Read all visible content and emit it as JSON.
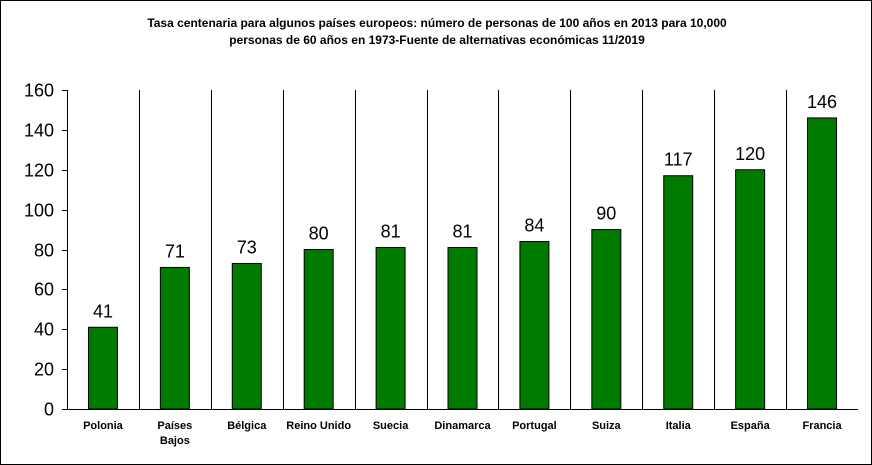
{
  "chart_data": {
    "type": "bar",
    "title_lines": [
      "Tasa centenaria para algunos países europeos: número de personas de 100 años en 2013 para 10,000",
      "personas de 60 años en 1973-Fuente de alternativas económicas 11/2019"
    ],
    "categories": [
      "Polonia",
      "Países Bajos",
      "Bélgica",
      "Reino Unido",
      "Suecia",
      "Dinamarca",
      "Portugal",
      "Suiza",
      "Italia",
      "España",
      "Francia"
    ],
    "category_lines": [
      [
        "Polonia"
      ],
      [
        "Países",
        "Bajos"
      ],
      [
        "Bélgica"
      ],
      [
        "Reino Unido"
      ],
      [
        "Suecia"
      ],
      [
        "Dinamarca"
      ],
      [
        "Portugal"
      ],
      [
        "Suiza"
      ],
      [
        "Italia"
      ],
      [
        "España"
      ],
      [
        "Francia"
      ]
    ],
    "values": [
      41,
      71,
      73,
      80,
      81,
      81,
      84,
      90,
      117,
      120,
      146
    ],
    "data_labels": [
      "41",
      "71",
      "73",
      "80",
      "81",
      "81",
      "84",
      "90",
      "117",
      "120",
      "146"
    ],
    "ylim": [
      0,
      160
    ],
    "yticks": [
      0,
      20,
      40,
      60,
      80,
      100,
      120,
      140,
      160
    ],
    "ytick_labels": [
      "0",
      "20",
      "40",
      "60",
      "80",
      "100",
      "120",
      "140",
      "160"
    ],
    "grid": "vertical separators between categories",
    "legend": "none",
    "colors": {
      "bar": "#007b00",
      "bar_stroke": "#000000",
      "background": "#ffffff",
      "axis": "#000000"
    }
  }
}
